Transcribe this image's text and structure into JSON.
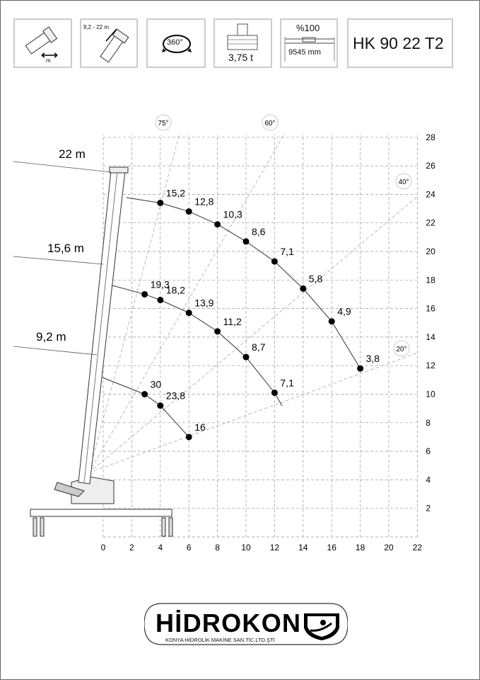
{
  "header": {
    "boxes": [
      {
        "icon": "boom-extension-icon",
        "label": "m"
      },
      {
        "icon": "boom-length-icon",
        "label": "9,2 - 22 m"
      },
      {
        "icon": "rotation-360-icon",
        "label": "360°"
      },
      {
        "icon": "weight-icon",
        "label": "3,75 t"
      },
      {
        "icon": "outrigger-span-icon",
        "label_top": "%100",
        "label": "9545 mm"
      }
    ],
    "model": "HK 90 22 T2"
  },
  "chart_data": {
    "type": "scatter",
    "xlim": [
      0,
      22
    ],
    "ylim": [
      0,
      28
    ],
    "x_ticks": [
      0,
      2,
      4,
      6,
      8,
      10,
      12,
      14,
      16,
      18,
      20,
      22
    ],
    "y_ticks": [
      2,
      4,
      6,
      8,
      10,
      12,
      14,
      16,
      18,
      20,
      22,
      24,
      26,
      28
    ],
    "grid": true,
    "angle_lines": [
      "75°",
      "60°",
      "40°",
      "20°"
    ],
    "series": [
      {
        "name": "22 m",
        "points": [
          {
            "x": 4,
            "y": 23.4,
            "label": "15,2"
          },
          {
            "x": 6,
            "y": 22.8,
            "label": "12,8"
          },
          {
            "x": 8,
            "y": 21.9,
            "label": "10,3"
          },
          {
            "x": 10,
            "y": 20.7,
            "label": "8,6"
          },
          {
            "x": 12,
            "y": 19.3,
            "label": "7,1"
          },
          {
            "x": 14,
            "y": 17.4,
            "label": "5,8"
          },
          {
            "x": 16,
            "y": 15.1,
            "label": "4,9"
          },
          {
            "x": 18,
            "y": 11.8,
            "label": "3,8"
          }
        ]
      },
      {
        "name": "15,6 m",
        "points": [
          {
            "x": 2.9,
            "y": 17.0,
            "label": "19,3"
          },
          {
            "x": 4,
            "y": 16.6,
            "label": "18,2"
          },
          {
            "x": 6,
            "y": 15.7,
            "label": "13,9"
          },
          {
            "x": 8,
            "y": 14.4,
            "label": "11,2"
          },
          {
            "x": 10,
            "y": 12.6,
            "label": "8,7"
          },
          {
            "x": 12,
            "y": 10.1,
            "label": "7,1"
          }
        ]
      },
      {
        "name": "9,2 m",
        "points": [
          {
            "x": 2.9,
            "y": 10.0,
            "label": "30"
          },
          {
            "x": 4,
            "y": 9.2,
            "label": "23,8"
          },
          {
            "x": 6,
            "y": 7.0,
            "label": "16"
          }
        ]
      }
    ]
  },
  "logo": {
    "brand": "HİDROKON",
    "subtitle": "KONYA HİDROLİK MAKİNE SAN.TİC.LTD.ŞTİ"
  }
}
